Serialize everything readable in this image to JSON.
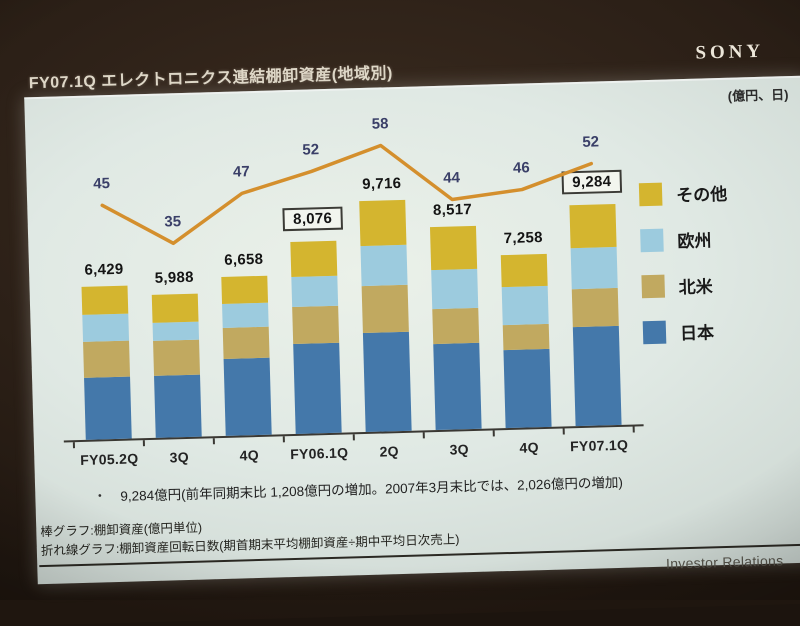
{
  "slide": {
    "title": "FY07.1Q エレクトロニクス連結棚卸資産(地域別)",
    "brand": "SONY",
    "unit_note": "(億円、日)",
    "bullet": {
      "marker": "・",
      "text": "9,284億円(前年同期末比 1,208億円の増加。2007年3月末比では、2,026億円の増加)"
    },
    "notes": [
      "棒グラフ:棚卸資産(億円単位)",
      "折れ線グラフ:棚卸資産回転日数(期首期末平均棚卸資産÷期中平均日次売上)"
    ],
    "footer_text": "Investor Relations"
  },
  "chart_data": {
    "type": "bar",
    "subtype": "stacked-bar-with-line-overlay",
    "title": "エレクトロニクス連結棚卸資産(地域別)",
    "categories": [
      "FY05.2Q",
      "3Q",
      "4Q",
      "FY06.1Q",
      "2Q",
      "3Q",
      "4Q",
      "FY07.1Q"
    ],
    "totals": [
      6429,
      5988,
      6658,
      8076,
      9716,
      8517,
      7258,
      9284
    ],
    "boxed_total_indices": [
      3,
      7
    ],
    "series": [
      {
        "id": "japan",
        "name": "日本",
        "color": "#4478aa",
        "values": [
          2585,
          2612,
          3227,
          3790,
          4173,
          3630,
          3278,
          4160
        ]
      },
      {
        "id": "north-america",
        "name": "北米",
        "color": "#c1a960",
        "values": [
          1540,
          1451,
          1308,
          1560,
          1976,
          1466,
          1037,
          1597
        ]
      },
      {
        "id": "europe",
        "name": "欧州",
        "color": "#9ccbde",
        "values": [
          1120,
          775,
          1020,
          1255,
          1671,
          1634,
          1594,
          1730
        ]
      },
      {
        "id": "other",
        "name": "その他",
        "color": "#d4b52f",
        "values": [
          1184,
          1150,
          1103,
          1471,
          1896,
          1787,
          1349,
          1797
        ]
      }
    ],
    "line": {
      "name": "棚卸資産回転日数",
      "unit": "日",
      "color": "#d48f2d",
      "label_color": "#3a3f68",
      "values": [
        45,
        35,
        47,
        52,
        58,
        44,
        46,
        52
      ]
    },
    "legend_order": [
      "その他",
      "欧州",
      "北米",
      "日本"
    ],
    "legend_position": "right",
    "y_axis_visible": false,
    "bar_unit": "億円",
    "line_unit": "日"
  }
}
